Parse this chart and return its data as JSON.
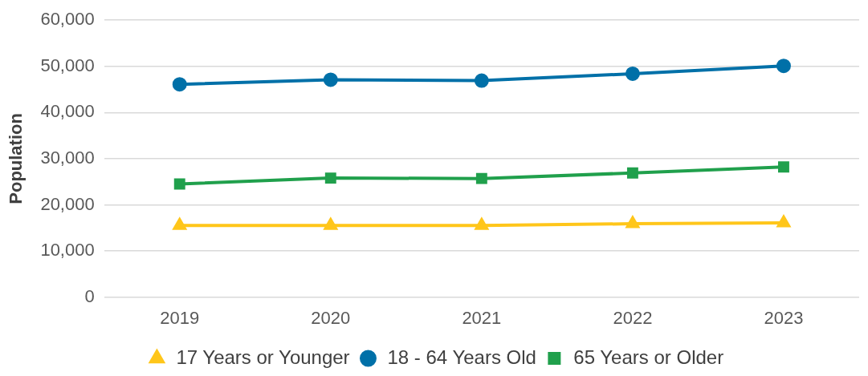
{
  "chart_data": {
    "type": "line",
    "ylabel": "Population",
    "categories": [
      "2019",
      "2020",
      "2021",
      "2022",
      "2023"
    ],
    "series": [
      {
        "name": "17 Years or Younger",
        "color": "#ffc61a",
        "marker": "triangle",
        "values": [
          15500,
          15500,
          15500,
          15900,
          16100
        ]
      },
      {
        "name": "18 - 64 Years Old",
        "color": "#0070a8",
        "marker": "circle",
        "values": [
          46100,
          47100,
          46900,
          48400,
          50100
        ]
      },
      {
        "name": "65 Years or Older",
        "color": "#20a04c",
        "marker": "square",
        "values": [
          24500,
          25800,
          25700,
          26900,
          28200
        ]
      }
    ],
    "ylim": [
      0,
      60000
    ],
    "yticks": [
      {
        "value": 0,
        "label": "0"
      },
      {
        "value": 10000,
        "label": "10,000"
      },
      {
        "value": 20000,
        "label": "20,000"
      },
      {
        "value": 30000,
        "label": "30,000"
      },
      {
        "value": 40000,
        "label": "40,000"
      },
      {
        "value": 50000,
        "label": "50,000"
      },
      {
        "value": 60000,
        "label": "60,000"
      }
    ],
    "grid": "y",
    "legend": "bottom",
    "line_style": "solid"
  }
}
